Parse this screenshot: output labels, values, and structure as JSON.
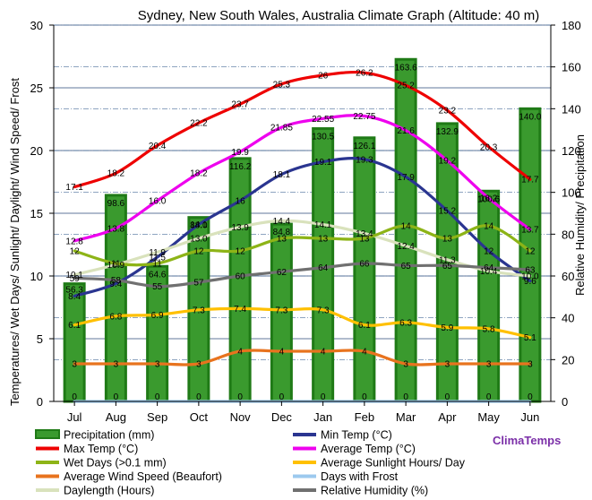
{
  "chart_data": {
    "type": "bar+line",
    "title": "Sydney, New South Wales, Australia Climate Graph (Altitude: 40 m)",
    "ylabel_left": "Temperatures/ Wet Days/ Sunlight/ Daylight/ Wind Speed/ Frost",
    "ylabel_right": "Relative Humidity/ Precipitation",
    "ylim_left": [
      0,
      30
    ],
    "ylim_right": [
      0,
      180
    ],
    "yticks_left": [
      "0",
      "5",
      "10",
      "15",
      "20",
      "25",
      "30"
    ],
    "yticks_right": [
      "0",
      "20",
      "40",
      "60",
      "80",
      "100",
      "120",
      "140",
      "160",
      "180"
    ],
    "categories": [
      "Jul",
      "Aug",
      "Sep",
      "Oct",
      "Nov",
      "Dec",
      "Jan",
      "Feb",
      "Mar",
      "Apr",
      "May",
      "Jun"
    ],
    "bars": {
      "name": "Precipitation (mm)",
      "axis": "right",
      "color": "#3a9a2e",
      "values": [
        56.3,
        98.6,
        64.6,
        88.0,
        116.2,
        84.8,
        130.5,
        126.1,
        163.6,
        132.9,
        100.6,
        140.0
      ],
      "labels": [
        "56.3",
        "98.6",
        "64.6",
        "88.0",
        "116.2",
        "84.8",
        "130.5",
        "126.1",
        "163.6",
        "132.9",
        "100.6",
        "140.0"
      ],
      "count_labels": [
        "0",
        "0",
        "0",
        "0",
        "0",
        "0",
        "0",
        "0",
        "0",
        "0",
        "0",
        "0"
      ]
    },
    "series": [
      {
        "name": "Max Temp (°C)",
        "axis": "left",
        "color": "#ee0000",
        "values": [
          17.1,
          18.2,
          20.4,
          22.2,
          23.7,
          25.3,
          26,
          26.2,
          25.2,
          23.2,
          20.3,
          17.7
        ],
        "labels": [
          "17.1",
          "18.2",
          "20.4",
          "22.2",
          "23.7",
          "25.3",
          "26",
          "26.2",
          "25.2",
          "23.2",
          "20.3",
          "17.7"
        ]
      },
      {
        "name": "Average Temp (°C)",
        "axis": "left",
        "color": "#ee00ee",
        "values": [
          12.8,
          13.8,
          16.0,
          18.2,
          19.9,
          21.85,
          22.55,
          22.75,
          21.6,
          19.2,
          16.2,
          13.7
        ],
        "labels": [
          "12.8",
          "13.8",
          "16.0",
          "18.2",
          "19.9",
          "21.85",
          "22.55",
          "22.75",
          "21.6",
          "19.2",
          "16.2",
          "13.7"
        ]
      },
      {
        "name": "Min Temp (°C)",
        "axis": "left",
        "color": "#2a3590",
        "values": [
          8.4,
          9.4,
          11.5,
          14.1,
          16.0,
          18.1,
          19.1,
          19.3,
          17.9,
          15.2,
          12,
          9.6
        ],
        "labels": [
          "8.4",
          "9.4",
          "11.5",
          "14.1",
          "16",
          "18.1",
          "19.1",
          "19.3",
          "17.9",
          "15.2",
          "12",
          "9.6"
        ]
      },
      {
        "name": "Daylength (Hours)",
        "axis": "left",
        "color": "#d9e2bc",
        "values": [
          10.1,
          10.9,
          11.9,
          13.0,
          13.9,
          14.4,
          14.1,
          13.4,
          12.4,
          11.3,
          10.4,
          10.0
        ],
        "labels": [
          "10.1",
          "10.9",
          "11.9",
          "13.0",
          "13.9",
          "14.4",
          "14.1",
          "13.4",
          "12.4",
          "11.3",
          "10.4",
          "10.0"
        ]
      },
      {
        "name": "Wet Days (>0.1 mm)",
        "axis": "left",
        "color": "#8db417",
        "values": [
          12,
          11,
          11,
          12,
          12,
          13,
          13,
          13,
          14,
          13,
          14,
          12
        ],
        "labels": [
          "12",
          "11",
          "11",
          "12",
          "12",
          "13",
          "13",
          "13",
          "14",
          "13",
          "14",
          "12"
        ]
      },
      {
        "name": "Relative Humidity (%)",
        "axis": "right",
        "color": "#707070",
        "values": [
          59,
          58,
          55,
          57,
          60,
          62,
          64,
          66,
          65,
          65,
          64,
          63
        ],
        "labels": [
          "59",
          "58",
          "55",
          "57",
          "60",
          "62",
          "64",
          "66",
          "65",
          "65",
          "64",
          "63"
        ]
      },
      {
        "name": "Average Sunlight Hours/ Day",
        "axis": "left",
        "color": "#ffc000",
        "values": [
          6.1,
          6.8,
          6.9,
          7.3,
          7.4,
          7.3,
          7.3,
          6.1,
          6.3,
          5.9,
          5.8,
          5.1
        ],
        "labels": [
          "6.1",
          "6.8",
          "6.9",
          "7.3",
          "7.4",
          "7.3",
          "7.3",
          "6.1",
          "6.3",
          "5.9",
          "5.8",
          "5.1"
        ]
      },
      {
        "name": "Average Wind Speed (Beaufort)",
        "axis": "left",
        "color": "#e8731e",
        "values": [
          3,
          3,
          3,
          3,
          4,
          4,
          4,
          4,
          3,
          3,
          3,
          3
        ],
        "labels": [
          "3",
          "3",
          "3",
          "3",
          "4",
          "4",
          "4",
          "4",
          "3",
          "3",
          "3",
          "3"
        ]
      },
      {
        "name": "Days with Frost",
        "axis": "left",
        "color": "#9cc9ee",
        "values": [
          0,
          0,
          0,
          0,
          0,
          0,
          0,
          0,
          0,
          0,
          0,
          0
        ],
        "labels": []
      }
    ],
    "legend": {
      "placement": "bottom",
      "entries": [
        {
          "name": "Precipitation (mm)",
          "color": "#3a9a2e",
          "kind": "bar"
        },
        {
          "name": "Min Temp (°C)",
          "color": "#2a3590",
          "kind": "line"
        },
        {
          "name": "Max Temp (°C)",
          "color": "#ee0000",
          "kind": "line"
        },
        {
          "name": "Average Temp (°C)",
          "color": "#ee00ee",
          "kind": "line"
        },
        {
          "name": "Wet Days (>0.1 mm)",
          "color": "#8db417",
          "kind": "line"
        },
        {
          "name": "Average Sunlight Hours/ Day",
          "color": "#ffc000",
          "kind": "line"
        },
        {
          "name": "Average Wind Speed (Beaufort)",
          "color": "#e8731e",
          "kind": "line"
        },
        {
          "name": "Days with Frost",
          "color": "#9cc9ee",
          "kind": "line"
        },
        {
          "name": "Daylength (Hours)",
          "color": "#d9e2bc",
          "kind": "line"
        },
        {
          "name": "Relative Humidity (%)",
          "color": "#707070",
          "kind": "line"
        }
      ]
    },
    "brand": "ClimaTemps"
  }
}
